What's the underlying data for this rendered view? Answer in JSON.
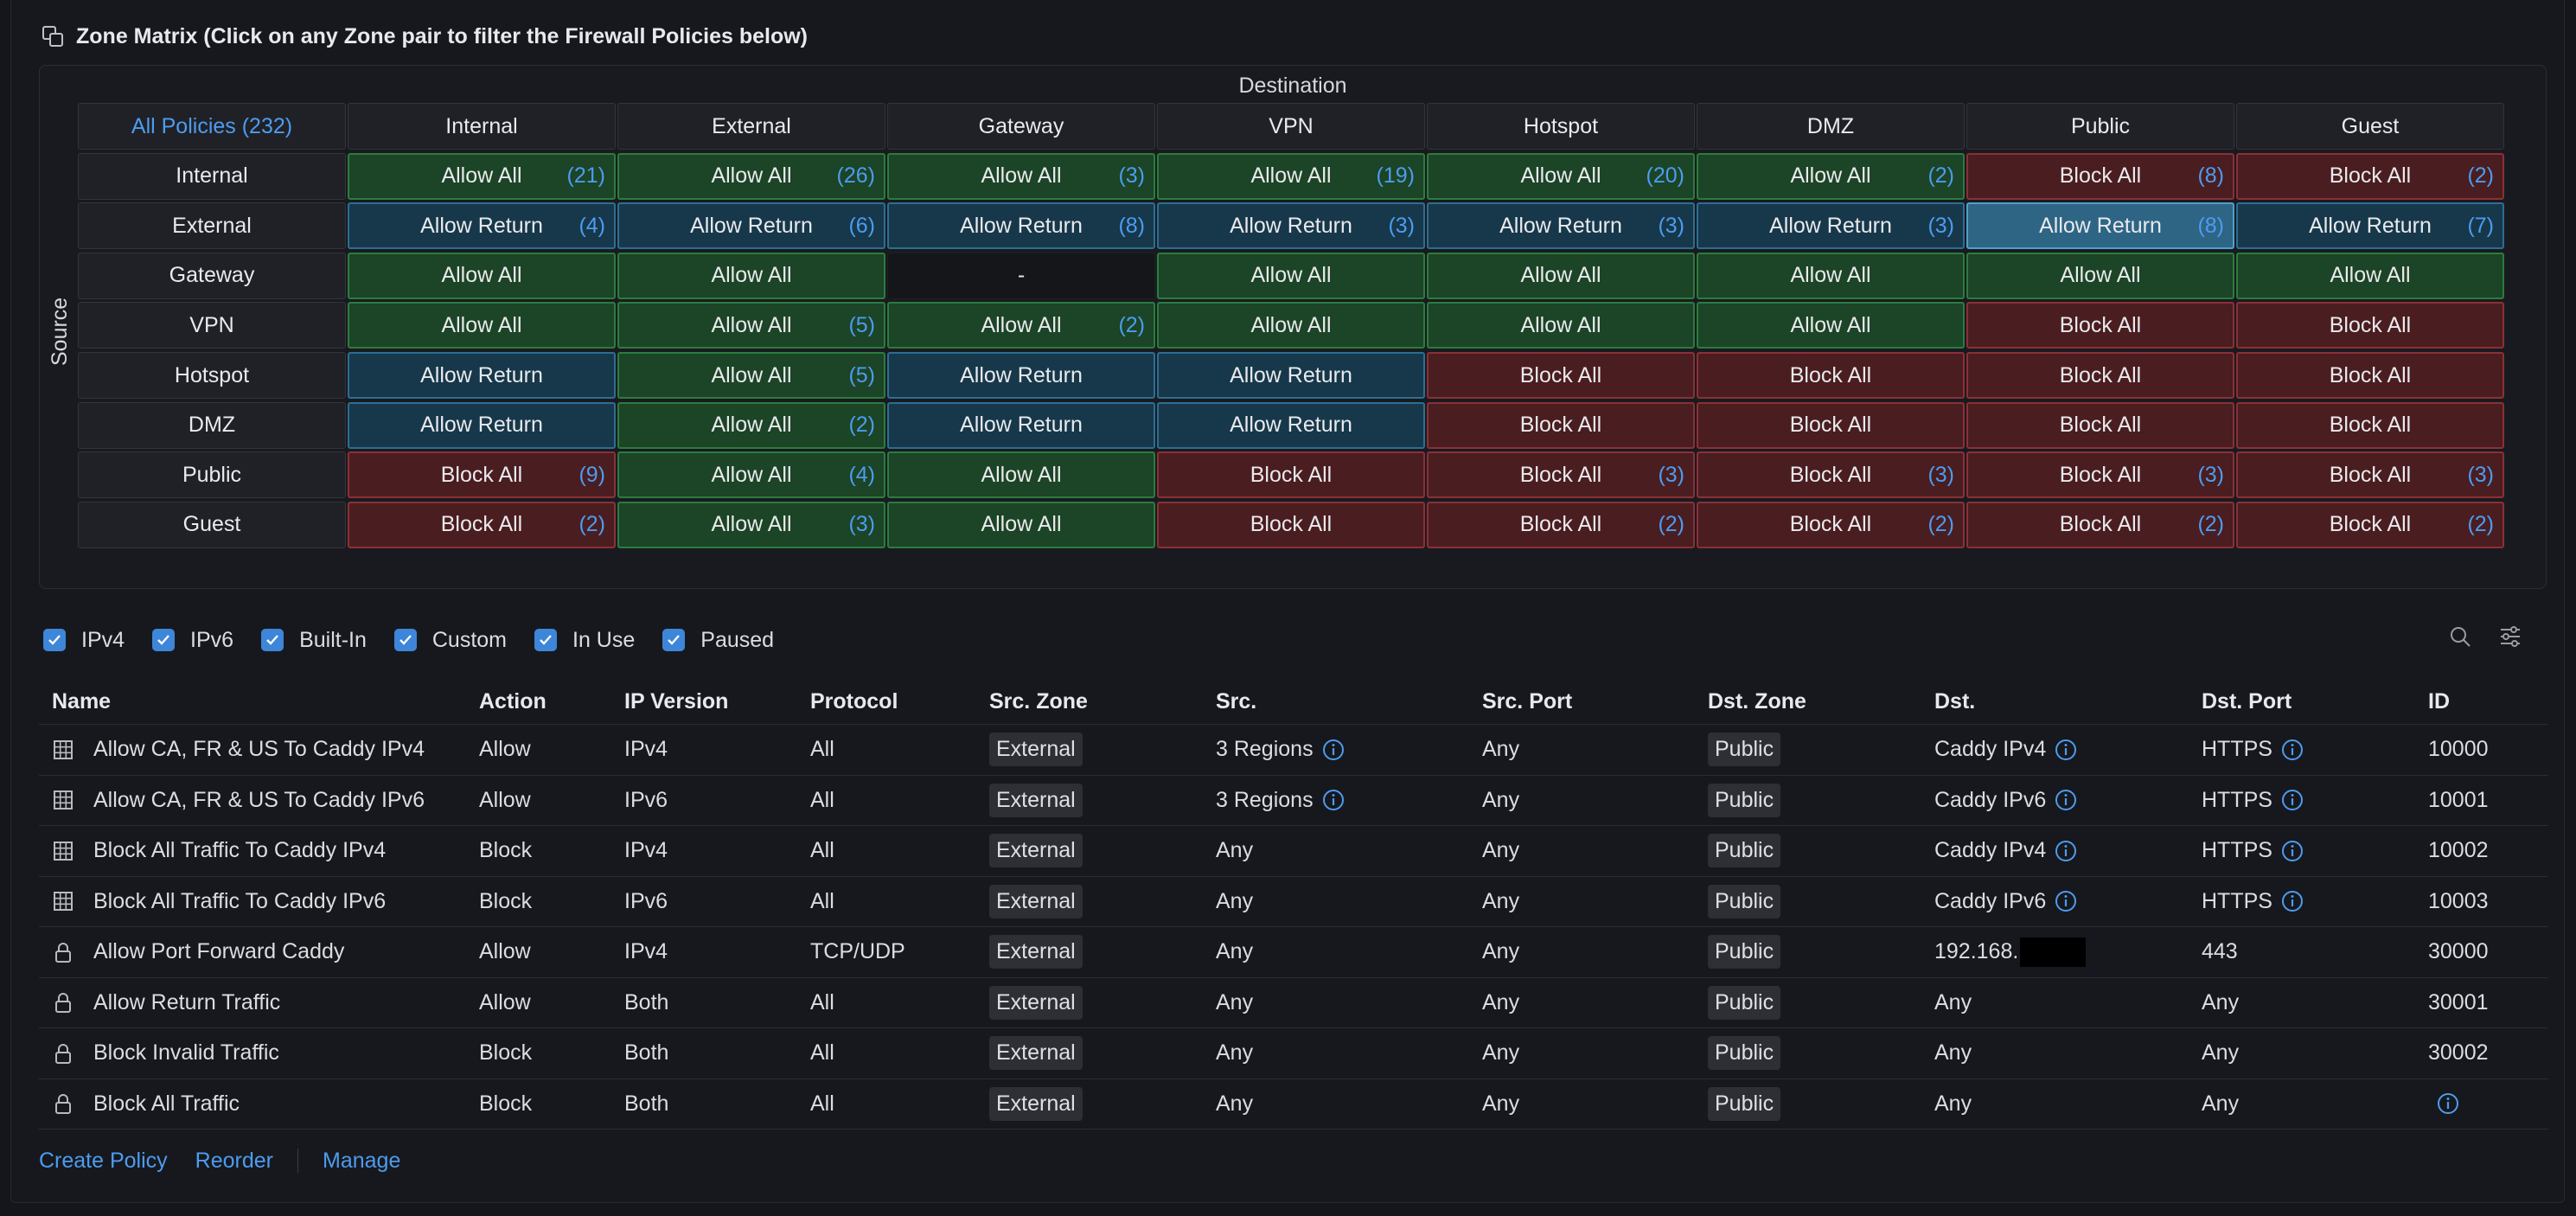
{
  "title": "Zone Matrix (Click on any Zone pair to filter the Firewall Policies below)",
  "matrix": {
    "destination_label": "Destination",
    "source_label": "Source",
    "corner_label": "All Policies (232)",
    "columns": [
      "Internal",
      "External",
      "Gateway",
      "VPN",
      "Hotspot",
      "DMZ",
      "Public",
      "Guest"
    ],
    "rows": [
      {
        "label": "Internal",
        "cells": [
          {
            "t": "Allow All",
            "c": "(21)",
            "k": "allow"
          },
          {
            "t": "Allow All",
            "c": "(26)",
            "k": "allow"
          },
          {
            "t": "Allow All",
            "c": "(3)",
            "k": "allow"
          },
          {
            "t": "Allow All",
            "c": "(19)",
            "k": "allow"
          },
          {
            "t": "Allow All",
            "c": "(20)",
            "k": "allow"
          },
          {
            "t": "Allow All",
            "c": "(2)",
            "k": "allow"
          },
          {
            "t": "Block All",
            "c": "(8)",
            "k": "block"
          },
          {
            "t": "Block All",
            "c": "(2)",
            "k": "block"
          }
        ]
      },
      {
        "label": "External",
        "cells": [
          {
            "t": "Allow Return",
            "c": "(4)",
            "k": "ret"
          },
          {
            "t": "Allow Return",
            "c": "(6)",
            "k": "ret"
          },
          {
            "t": "Allow Return",
            "c": "(8)",
            "k": "ret"
          },
          {
            "t": "Allow Return",
            "c": "(3)",
            "k": "ret"
          },
          {
            "t": "Allow Return",
            "c": "(3)",
            "k": "ret"
          },
          {
            "t": "Allow Return",
            "c": "(3)",
            "k": "ret"
          },
          {
            "t": "Allow Return",
            "c": "(8)",
            "k": "ret sel"
          },
          {
            "t": "Allow Return",
            "c": "(7)",
            "k": "ret"
          }
        ]
      },
      {
        "label": "Gateway",
        "cells": [
          {
            "t": "Allow All",
            "c": "",
            "k": "allow"
          },
          {
            "t": "Allow All",
            "c": "",
            "k": "allow"
          },
          {
            "t": "-",
            "c": "",
            "k": "none"
          },
          {
            "t": "Allow All",
            "c": "",
            "k": "allow"
          },
          {
            "t": "Allow All",
            "c": "",
            "k": "allow"
          },
          {
            "t": "Allow All",
            "c": "",
            "k": "allow"
          },
          {
            "t": "Allow All",
            "c": "",
            "k": "allow"
          },
          {
            "t": "Allow All",
            "c": "",
            "k": "allow"
          }
        ]
      },
      {
        "label": "VPN",
        "cells": [
          {
            "t": "Allow All",
            "c": "",
            "k": "allow"
          },
          {
            "t": "Allow All",
            "c": "(5)",
            "k": "allow"
          },
          {
            "t": "Allow All",
            "c": "(2)",
            "k": "allow"
          },
          {
            "t": "Allow All",
            "c": "",
            "k": "allow"
          },
          {
            "t": "Allow All",
            "c": "",
            "k": "allow"
          },
          {
            "t": "Allow All",
            "c": "",
            "k": "allow"
          },
          {
            "t": "Block All",
            "c": "",
            "k": "block"
          },
          {
            "t": "Block All",
            "c": "",
            "k": "block"
          }
        ]
      },
      {
        "label": "Hotspot",
        "cells": [
          {
            "t": "Allow Return",
            "c": "",
            "k": "ret"
          },
          {
            "t": "Allow All",
            "c": "(5)",
            "k": "allow"
          },
          {
            "t": "Allow Return",
            "c": "",
            "k": "ret"
          },
          {
            "t": "Allow Return",
            "c": "",
            "k": "ret"
          },
          {
            "t": "Block All",
            "c": "",
            "k": "block"
          },
          {
            "t": "Block All",
            "c": "",
            "k": "block"
          },
          {
            "t": "Block All",
            "c": "",
            "k": "block"
          },
          {
            "t": "Block All",
            "c": "",
            "k": "block"
          }
        ]
      },
      {
        "label": "DMZ",
        "cells": [
          {
            "t": "Allow Return",
            "c": "",
            "k": "ret"
          },
          {
            "t": "Allow All",
            "c": "(2)",
            "k": "allow"
          },
          {
            "t": "Allow Return",
            "c": "",
            "k": "ret"
          },
          {
            "t": "Allow Return",
            "c": "",
            "k": "ret"
          },
          {
            "t": "Block All",
            "c": "",
            "k": "block"
          },
          {
            "t": "Block All",
            "c": "",
            "k": "block"
          },
          {
            "t": "Block All",
            "c": "",
            "k": "block"
          },
          {
            "t": "Block All",
            "c": "",
            "k": "block"
          }
        ]
      },
      {
        "label": "Public",
        "cells": [
          {
            "t": "Block All",
            "c": "(9)",
            "k": "block"
          },
          {
            "t": "Allow All",
            "c": "(4)",
            "k": "allow"
          },
          {
            "t": "Allow All",
            "c": "",
            "k": "allow"
          },
          {
            "t": "Block All",
            "c": "",
            "k": "block"
          },
          {
            "t": "Block All",
            "c": "(3)",
            "k": "block"
          },
          {
            "t": "Block All",
            "c": "(3)",
            "k": "block"
          },
          {
            "t": "Block All",
            "c": "(3)",
            "k": "block"
          },
          {
            "t": "Block All",
            "c": "(3)",
            "k": "block"
          }
        ]
      },
      {
        "label": "Guest",
        "cells": [
          {
            "t": "Block All",
            "c": "(2)",
            "k": "block"
          },
          {
            "t": "Allow All",
            "c": "(3)",
            "k": "allow"
          },
          {
            "t": "Allow All",
            "c": "",
            "k": "allow"
          },
          {
            "t": "Block All",
            "c": "",
            "k": "block"
          },
          {
            "t": "Block All",
            "c": "(2)",
            "k": "block"
          },
          {
            "t": "Block All",
            "c": "(2)",
            "k": "block"
          },
          {
            "t": "Block All",
            "c": "(2)",
            "k": "block"
          },
          {
            "t": "Block All",
            "c": "(2)",
            "k": "block"
          }
        ]
      }
    ]
  },
  "filters": [
    {
      "label": "IPv4",
      "checked": true
    },
    {
      "label": "IPv6",
      "checked": true
    },
    {
      "label": "Built-In",
      "checked": true
    },
    {
      "label": "Custom",
      "checked": true
    },
    {
      "label": "In Use",
      "checked": true
    },
    {
      "label": "Paused",
      "checked": true
    }
  ],
  "table": {
    "headers": [
      "Name",
      "Action",
      "IP Version",
      "Protocol",
      "Src. Zone",
      "Src.",
      "Src. Port",
      "Dst. Zone",
      "Dst.",
      "Dst. Port",
      "ID"
    ],
    "rows": [
      {
        "icon": "grid-icon",
        "name": "Allow CA, FR & US To Caddy IPv4",
        "action": "Allow",
        "ipv": "IPv4",
        "proto": "All",
        "src_zone": "External",
        "src": "3 Regions",
        "src_info": true,
        "src_port": "Any",
        "dst_zone": "Public",
        "dst": "Caddy IPv4",
        "dst_info": true,
        "dst_port": "HTTPS",
        "dst_port_info": true,
        "id": "10000",
        "id_info": false
      },
      {
        "icon": "grid-icon",
        "name": "Allow CA, FR & US To Caddy IPv6",
        "action": "Allow",
        "ipv": "IPv6",
        "proto": "All",
        "src_zone": "External",
        "src": "3 Regions",
        "src_info": true,
        "src_port": "Any",
        "dst_zone": "Public",
        "dst": "Caddy IPv6",
        "dst_info": true,
        "dst_port": "HTTPS",
        "dst_port_info": true,
        "id": "10001",
        "id_info": false
      },
      {
        "icon": "grid-icon",
        "name": "Block All Traffic To Caddy IPv4",
        "action": "Block",
        "ipv": "IPv4",
        "proto": "All",
        "src_zone": "External",
        "src": "Any",
        "src_info": false,
        "src_port": "Any",
        "dst_zone": "Public",
        "dst": "Caddy IPv4",
        "dst_info": true,
        "dst_port": "HTTPS",
        "dst_port_info": true,
        "id": "10002",
        "id_info": false
      },
      {
        "icon": "grid-icon",
        "name": "Block All Traffic To Caddy IPv6",
        "action": "Block",
        "ipv": "IPv6",
        "proto": "All",
        "src_zone": "External",
        "src": "Any",
        "src_info": false,
        "src_port": "Any",
        "dst_zone": "Public",
        "dst": "Caddy IPv6",
        "dst_info": true,
        "dst_port": "HTTPS",
        "dst_port_info": true,
        "id": "10003",
        "id_info": false
      },
      {
        "icon": "lock-icon",
        "name": "Allow Port Forward Caddy",
        "action": "Allow",
        "ipv": "IPv4",
        "proto": "TCP/UDP",
        "src_zone": "External",
        "src": "Any",
        "src_info": false,
        "src_port": "Any",
        "dst_zone": "Public",
        "dst": "192.168.",
        "dst_redacted": true,
        "dst_info": false,
        "dst_port": "443",
        "dst_port_info": false,
        "id": "30000",
        "id_info": false
      },
      {
        "icon": "lock-icon",
        "name": "Allow Return Traffic",
        "action": "Allow",
        "ipv": "Both",
        "proto": "All",
        "src_zone": "External",
        "src": "Any",
        "src_info": false,
        "src_port": "Any",
        "dst_zone": "Public",
        "dst": "Any",
        "dst_info": false,
        "dst_port": "Any",
        "dst_port_info": false,
        "id": "30001",
        "id_info": false
      },
      {
        "icon": "lock-icon",
        "name": "Block Invalid Traffic",
        "action": "Block",
        "ipv": "Both",
        "proto": "All",
        "src_zone": "External",
        "src": "Any",
        "src_info": false,
        "src_port": "Any",
        "dst_zone": "Public",
        "dst": "Any",
        "dst_info": false,
        "dst_port": "Any",
        "dst_port_info": false,
        "id": "30002",
        "id_info": false
      },
      {
        "icon": "lock-icon",
        "name": "Block All Traffic",
        "action": "Block",
        "ipv": "Both",
        "proto": "All",
        "src_zone": "External",
        "src": "Any",
        "src_info": false,
        "src_port": "Any",
        "dst_zone": "Public",
        "dst": "Any",
        "dst_info": false,
        "dst_port": "Any",
        "dst_port_info": false,
        "id": "",
        "id_info": true
      }
    ]
  },
  "footer": {
    "create": "Create Policy",
    "reorder": "Reorder",
    "manage": "Manage"
  },
  "colors": {
    "accent": "#4c9cf0",
    "allow": "#1c4426",
    "return": "#17384b",
    "block": "#4a1d20"
  }
}
